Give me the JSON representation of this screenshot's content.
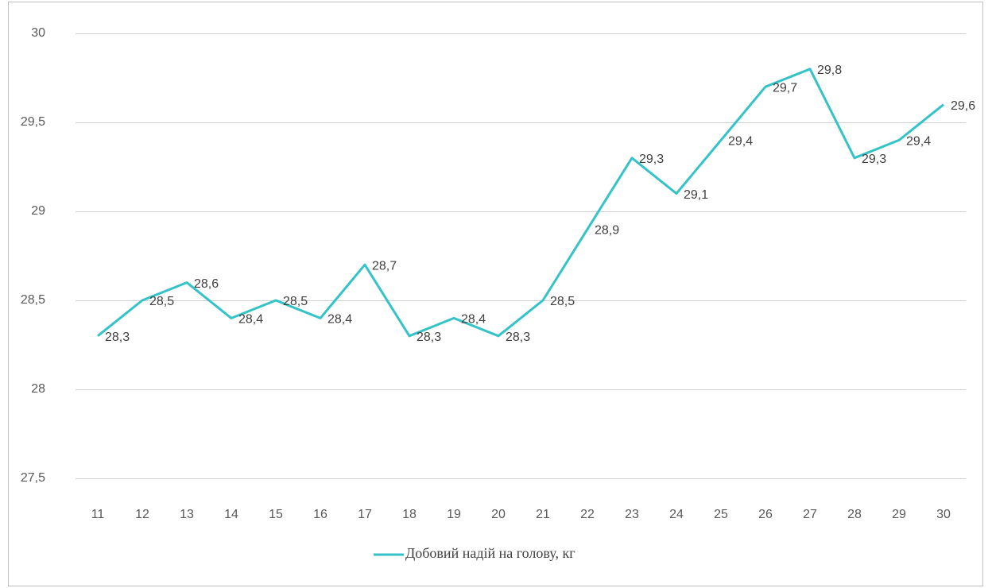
{
  "chart_data": {
    "type": "line",
    "categories": [
      "11",
      "12",
      "13",
      "14",
      "15",
      "16",
      "17",
      "18",
      "19",
      "20",
      "21",
      "22",
      "23",
      "24",
      "25",
      "26",
      "27",
      "28",
      "29",
      "30"
    ],
    "series": [
      {
        "name": "Добовий надій на голову, кг",
        "color": "#33c3c8",
        "values": [
          28.3,
          28.5,
          28.6,
          28.4,
          28.5,
          28.4,
          28.7,
          28.3,
          28.4,
          28.3,
          28.5,
          28.9,
          29.3,
          29.1,
          29.4,
          29.7,
          29.8,
          29.3,
          29.4,
          29.6
        ],
        "value_labels": [
          "28,3",
          "28,5",
          "28,6",
          "28,4",
          "28,5",
          "28,4",
          "28,7",
          "28,3",
          "28,4",
          "28,3",
          "28,5",
          "28,9",
          "29,3",
          "29,1",
          "29,4",
          "29,7",
          "29,8",
          "29,3",
          "29,4",
          "29,6"
        ]
      }
    ],
    "ylim": [
      27.5,
      30
    ],
    "yticks": [
      {
        "value": 27.5,
        "label": "27,5"
      },
      28,
      {
        "value": 28.5,
        "label": "28,5"
      },
      29,
      {
        "value": 29.5,
        "label": "29,5"
      },
      30
    ],
    "grid": true,
    "legend": "bottom"
  }
}
